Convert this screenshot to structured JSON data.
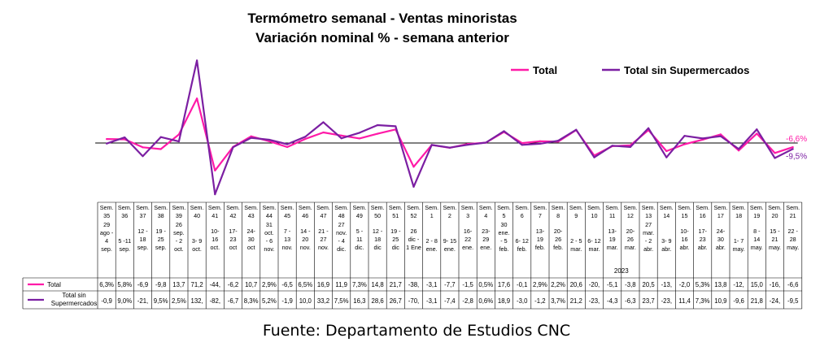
{
  "chart_data": {
    "type": "line",
    "title": "Termómetro semanal - Ventas minoristas",
    "subtitle": "Variación nominal % - semana anterior",
    "source": "Fuente: Departamento de Estudios CNC",
    "legend_position": "top-right",
    "year_label": "2023",
    "categories": [
      {
        "week": "Sem. 35",
        "range": "29 ago - 4 sep."
      },
      {
        "week": "Sem. 36",
        "range": "5 -11 sep."
      },
      {
        "week": "Sem. 37",
        "range": "12 - 18 sep."
      },
      {
        "week": "Sem. 38",
        "range": "19 - 25 sep."
      },
      {
        "week": "Sem. 39",
        "range": "26 sep. - 2 oct."
      },
      {
        "week": "Sem. 40",
        "range": "3- 9 oct."
      },
      {
        "week": "Sem. 41",
        "range": "10- 16 oct."
      },
      {
        "week": "Sem. 42",
        "range": "17- 23 oct"
      },
      {
        "week": "Sem. 43",
        "range": "24- 30 oct"
      },
      {
        "week": "Sem. 44",
        "range": "31 oct. - 6 nov."
      },
      {
        "week": "Sem. 45",
        "range": "7 - 13 nov."
      },
      {
        "week": "Sem. 46",
        "range": "14 - 20 nov."
      },
      {
        "week": "Sem. 47",
        "range": "21 - 27 nov."
      },
      {
        "week": "Sem. 48",
        "range": "27 nov. - 4 dic."
      },
      {
        "week": "Sem. 49",
        "range": "5 - 11 dic."
      },
      {
        "week": "Sem. 50",
        "range": "12 - 18 dic"
      },
      {
        "week": "Sem. 51",
        "range": "19 - 25 dic"
      },
      {
        "week": "Sem. 52",
        "range": "26 dic - 1 Ene"
      },
      {
        "week": "Sem. 1",
        "range": "2 - 8 ene."
      },
      {
        "week": "Sem. 2",
        "range": "9- 15 ene."
      },
      {
        "week": "Sem. 3",
        "range": "16- 22 ene."
      },
      {
        "week": "Sem. 4",
        "range": "23- 29 ene."
      },
      {
        "week": "Sem. 5",
        "range": "30 ene. - 5 feb."
      },
      {
        "week": "Sem. 6",
        "range": "6- 12 feb."
      },
      {
        "week": "Sem. 7",
        "range": "13- 19 feb."
      },
      {
        "week": "Sem. 8",
        "range": "20- 26 feb."
      },
      {
        "week": "Sem. 9",
        "range": "2 - 5 mar."
      },
      {
        "week": "Sem. 10",
        "range": "6- 12 mar."
      },
      {
        "week": "Sem. 11",
        "range": "13- 19 mar."
      },
      {
        "week": "Sem. 12",
        "range": "20- 26 mar."
      },
      {
        "week": "Sem. 13",
        "range": "27 mar. - 2 abr."
      },
      {
        "week": "Sem. 14",
        "range": "3- 9 abr."
      },
      {
        "week": "Sem. 15",
        "range": "10- 16 abr."
      },
      {
        "week": "Sem. 16",
        "range": "17- 23 abr."
      },
      {
        "week": "Sem. 17",
        "range": "24- 30 abr."
      },
      {
        "week": "Sem. 18",
        "range": "1- 7 may."
      },
      {
        "week": "Sem. 19",
        "range": "8 - 14 may."
      },
      {
        "week": "Sem. 20",
        "range": "15 - 21 may."
      },
      {
        "week": "Sem. 21",
        "range": "22 - 28 may."
      }
    ],
    "series": [
      {
        "name": "Total",
        "color": "#ff1aa8",
        "values": [
          6.3,
          5.8,
          -6.9,
          -9.8,
          13.7,
          71.2,
          -44,
          -6.2,
          10.7,
          2.9,
          -6.5,
          6.5,
          16.9,
          11.9,
          7.3,
          14.8,
          21.7,
          -38,
          -3.1,
          -7.7,
          -1.5,
          0.5,
          17.6,
          -0.1,
          2.9,
          2.2,
          20.6,
          -20,
          -5.1,
          -3.8,
          20.5,
          -13,
          -2.0,
          5.3,
          13.8,
          -12,
          15.0,
          -16,
          -6.6
        ],
        "labels": [
          "6,3%",
          "5,8%",
          "-6,9",
          "-9,8",
          "13,7",
          "71,2",
          "-44,",
          "-6,2",
          "10,7",
          "2,9%",
          "-6,5",
          "6,5%",
          "16,9",
          "11,9",
          "7,3%",
          "14,8",
          "21,7",
          "-38,",
          "-3,1",
          "-7,7",
          "-1,5",
          "0,5%",
          "17,6",
          "-0,1",
          "2,9%",
          "2,2%",
          "20,6",
          "-20,",
          "-5,1",
          "-3,8",
          "20,5",
          "-13,",
          "-2,0",
          "5,3%",
          "13,8",
          "-12,",
          "15,0",
          "-16,",
          "-6,6"
        ],
        "end_label": "-6,6%"
      },
      {
        "name": "Total sin Supermercados",
        "color": "#7b1fa2",
        "values": [
          -0.9,
          9.0,
          -21,
          9.5,
          2.5,
          132,
          -82,
          -6.7,
          8.3,
          5.2,
          -1.9,
          10.0,
          33.2,
          7.5,
          16.3,
          28.6,
          26.7,
          -70,
          -3.1,
          -7.4,
          -2.8,
          0.6,
          18.9,
          -3.0,
          -1.2,
          3.7,
          21.2,
          -23,
          -4.3,
          -6.3,
          23.7,
          -23,
          11.4,
          7.3,
          10.9,
          -9.6,
          21.8,
          -24,
          -9.5
        ],
        "labels": [
          "-0,9",
          "9,0%",
          "-21,",
          "9,5%",
          "2,5%",
          "132,",
          "-82,",
          "-6,7",
          "8,3%",
          "5,2%",
          "-1,9",
          "10,0",
          "33,2",
          "7,5%",
          "16,3",
          "28,6",
          "26,7",
          "-70,",
          "-3,1",
          "-7,4",
          "-2,8",
          "0,6%",
          "18,9",
          "-3,0",
          "-1,2",
          "3,7%",
          "21,2",
          "-23,",
          "-4,3",
          "-6,3",
          "23,7",
          "-23,",
          "11,4",
          "7,3%",
          "10,9",
          "-9,6",
          "21,8",
          "-24,",
          "-9,5"
        ],
        "end_label": "-9,5%"
      }
    ],
    "table_row_labels": [
      "Total",
      "Total sin Supermercados"
    ]
  }
}
